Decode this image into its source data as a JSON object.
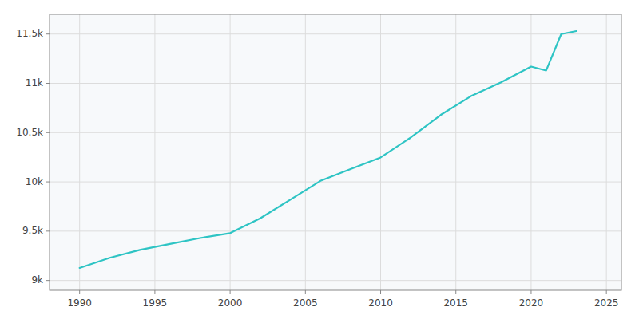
{
  "chart_data": {
    "type": "line",
    "x": [
      1990,
      1992,
      1994,
      1996,
      1998,
      2000,
      2002,
      2004,
      2006,
      2008,
      2010,
      2012,
      2014,
      2016,
      2018,
      2020,
      2021,
      2022,
      2023
    ],
    "values": [
      9127,
      9230,
      9310,
      9370,
      9430,
      9480,
      9630,
      9820,
      10010,
      10130,
      10248,
      10450,
      10680,
      10870,
      11010,
      11170,
      11130,
      11500,
      11530
    ],
    "color": "#2EC4C4",
    "xlim": [
      1988,
      2026
    ],
    "ylim": [
      8900,
      11700
    ],
    "xticks": [
      1990,
      1995,
      2000,
      2005,
      2010,
      2015,
      2020,
      2025
    ],
    "yticks": [
      {
        "value": 9000,
        "label": "9k"
      },
      {
        "value": 9500,
        "label": "9.5k"
      },
      {
        "value": 10000,
        "label": "10k"
      },
      {
        "value": 10500,
        "label": "10.5k"
      },
      {
        "value": 11000,
        "label": "11k"
      },
      {
        "value": 11500,
        "label": "11.5k"
      }
    ],
    "grid": true
  }
}
